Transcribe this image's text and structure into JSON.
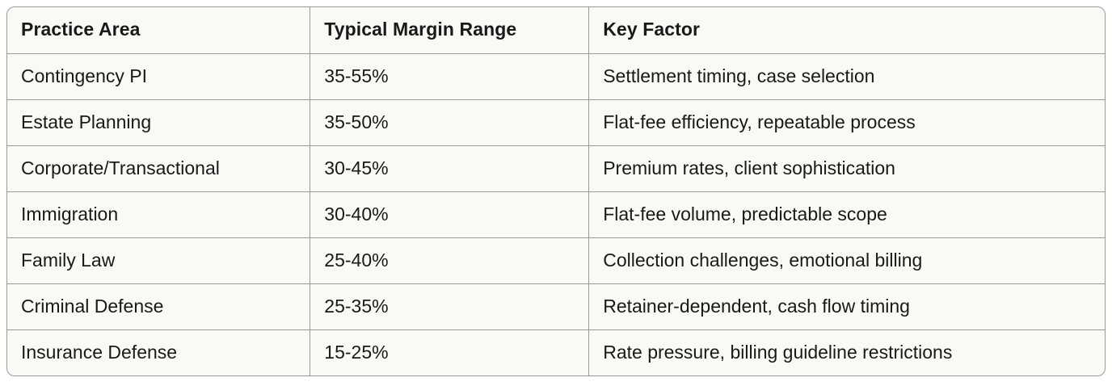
{
  "table": {
    "columns": [
      "Practice Area",
      "Typical Margin Range",
      "Key Factor"
    ],
    "rows": [
      {
        "practice_area": "Contingency PI",
        "margin_range": "35-55%",
        "key_factor": "Settlement timing, case selection"
      },
      {
        "practice_area": "Estate Planning",
        "margin_range": "35-50%",
        "key_factor": "Flat-fee efficiency, repeatable process"
      },
      {
        "practice_area": "Corporate/Transactional",
        "margin_range": "30-45%",
        "key_factor": "Premium rates, client sophistication"
      },
      {
        "practice_area": "Immigration",
        "margin_range": "30-40%",
        "key_factor": "Flat-fee volume, predictable scope"
      },
      {
        "practice_area": "Family Law",
        "margin_range": "25-40%",
        "key_factor": "Collection challenges, emotional billing"
      },
      {
        "practice_area": "Criminal Defense",
        "margin_range": "25-35%",
        "key_factor": "Retainer-dependent, cash flow timing"
      },
      {
        "practice_area": "Insurance Defense",
        "margin_range": "15-25%",
        "key_factor": "Rate pressure, billing guideline restrictions"
      }
    ]
  },
  "colors": {
    "page_bg": "#FFFFFF",
    "table_bg": "#FAF9F5",
    "border": "#9C9A94",
    "text": "#1A1917"
  }
}
